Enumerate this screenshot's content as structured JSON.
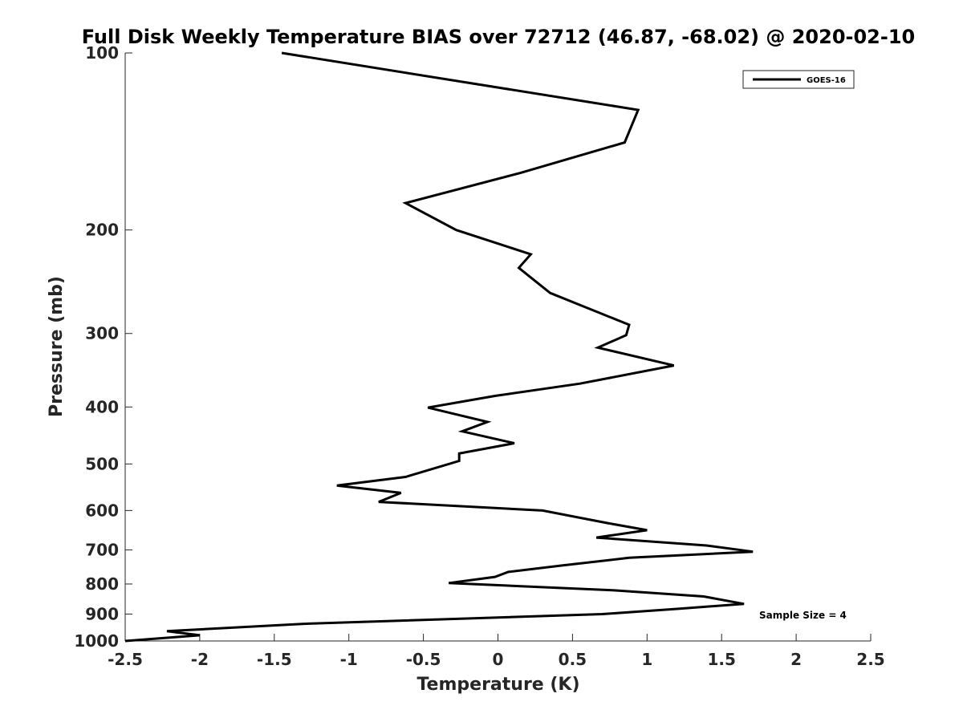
{
  "chart_data": {
    "type": "line",
    "title": "Full Disk Weekly Temperature BIAS over 72712 (46.87, -68.02) @ 2020-02-10",
    "xlabel": "Temperature (K)",
    "ylabel": "Pressure (mb)",
    "xlim": [
      -2.5,
      2.5
    ],
    "ylim": [
      100,
      1000
    ],
    "yscale": "log",
    "yreversed": true,
    "xticks": [
      -2.5,
      -2,
      -1.5,
      -1,
      -0.5,
      0,
      0.5,
      1,
      1.5,
      2,
      2.5
    ],
    "xtick_labels": [
      "-2.5",
      "-2",
      "-1.5",
      "-1",
      "-0.5",
      "0",
      "0.5",
      "1",
      "1.5",
      "2",
      "2.5"
    ],
    "yticks": [
      100,
      200,
      300,
      400,
      500,
      600,
      700,
      800,
      900,
      1000
    ],
    "ytick_labels": [
      "100",
      "200",
      "300",
      "400",
      "500",
      "600",
      "700",
      "800",
      "900",
      "1000"
    ],
    "grid": false,
    "legend_position": "top-right",
    "series": [
      {
        "name": "GOES-16",
        "color": "#000000",
        "points": [
          [
            -1.45,
            100
          ],
          [
            0.94,
            125
          ],
          [
            0.85,
            142
          ],
          [
            0.15,
            160
          ],
          [
            -0.62,
            180
          ],
          [
            -0.28,
            200
          ],
          [
            0.22,
            220
          ],
          [
            0.14,
            232
          ],
          [
            0.35,
            256
          ],
          [
            0.88,
            290
          ],
          [
            0.86,
            302
          ],
          [
            0.67,
            317
          ],
          [
            1.18,
            340
          ],
          [
            0.55,
            365
          ],
          [
            -0.02,
            383
          ],
          [
            -0.47,
            401
          ],
          [
            -0.07,
            424
          ],
          [
            -0.24,
            440
          ],
          [
            0.11,
            461
          ],
          [
            -0.26,
            480
          ],
          [
            -0.26,
            494
          ],
          [
            -0.62,
            526
          ],
          [
            -1.08,
            544
          ],
          [
            -0.65,
            560
          ],
          [
            -0.8,
            580
          ],
          [
            0.3,
            600
          ],
          [
            0.73,
            630
          ],
          [
            1.0,
            648
          ],
          [
            0.66,
            667
          ],
          [
            1.4,
            688
          ],
          [
            1.71,
            705
          ],
          [
            0.88,
            722
          ],
          [
            0.43,
            744
          ],
          [
            0.07,
            763
          ],
          [
            -0.02,
            778
          ],
          [
            -0.33,
            797
          ],
          [
            0.77,
            820
          ],
          [
            1.38,
            840
          ],
          [
            1.65,
            865
          ],
          [
            1.2,
            882
          ],
          [
            0.7,
            900
          ],
          [
            -1.3,
            935
          ],
          [
            -2.22,
            962
          ],
          [
            -2.0,
            978
          ],
          [
            -2.5,
            1000
          ]
        ]
      }
    ],
    "annotations": [
      "Sample Size = 4"
    ]
  }
}
